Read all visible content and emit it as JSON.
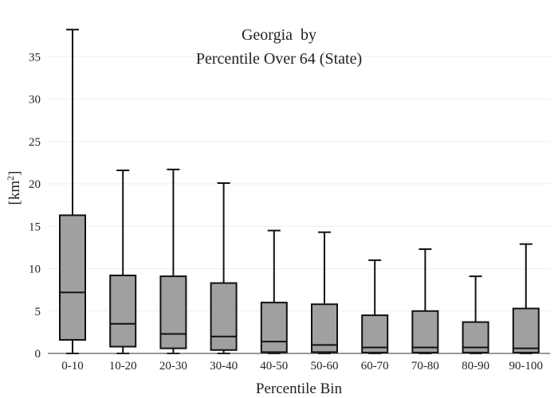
{
  "chart_data": {
    "type": "box",
    "title": [
      "Georgia  by",
      "Percentile Over 64 (State)"
    ],
    "xlabel": "Percentile Bin",
    "ylabel_base": "[km",
    "ylabel_sup": "2",
    "ylabel_close": "]",
    "ylim": [
      0,
      38.5
    ],
    "yticks": [
      0,
      5,
      10,
      15,
      20,
      25,
      30,
      35
    ],
    "grid": true,
    "categories": [
      "0-10",
      "10-20",
      "20-30",
      "30-40",
      "40-50",
      "50-60",
      "60-70",
      "70-80",
      "80-90",
      "90-100"
    ],
    "boxes": [
      {
        "min": 0.0,
        "q1": 1.6,
        "median": 7.2,
        "q3": 16.3,
        "max": 38.2
      },
      {
        "min": 0.0,
        "q1": 0.8,
        "median": 3.5,
        "q3": 9.2,
        "max": 21.6
      },
      {
        "min": 0.0,
        "q1": 0.6,
        "median": 2.3,
        "q3": 9.1,
        "max": 21.7
      },
      {
        "min": 0.0,
        "q1": 0.4,
        "median": 2.0,
        "q3": 8.3,
        "max": 20.1
      },
      {
        "min": 0.0,
        "q1": 0.15,
        "median": 1.4,
        "q3": 6.0,
        "max": 14.5
      },
      {
        "min": 0.0,
        "q1": 0.15,
        "median": 1.0,
        "q3": 5.8,
        "max": 14.3
      },
      {
        "min": 0.0,
        "q1": 0.1,
        "median": 0.7,
        "q3": 4.5,
        "max": 11.0
      },
      {
        "min": 0.0,
        "q1": 0.1,
        "median": 0.7,
        "q3": 5.0,
        "max": 12.3
      },
      {
        "min": 0.0,
        "q1": 0.1,
        "median": 0.7,
        "q3": 3.7,
        "max": 9.1
      },
      {
        "min": 0.0,
        "q1": 0.1,
        "median": 0.6,
        "q3": 5.3,
        "max": 12.9
      }
    ],
    "colors": {
      "box_fill": "#a0a0a0",
      "stroke": "#111111",
      "grid": "#eeeeee"
    }
  }
}
